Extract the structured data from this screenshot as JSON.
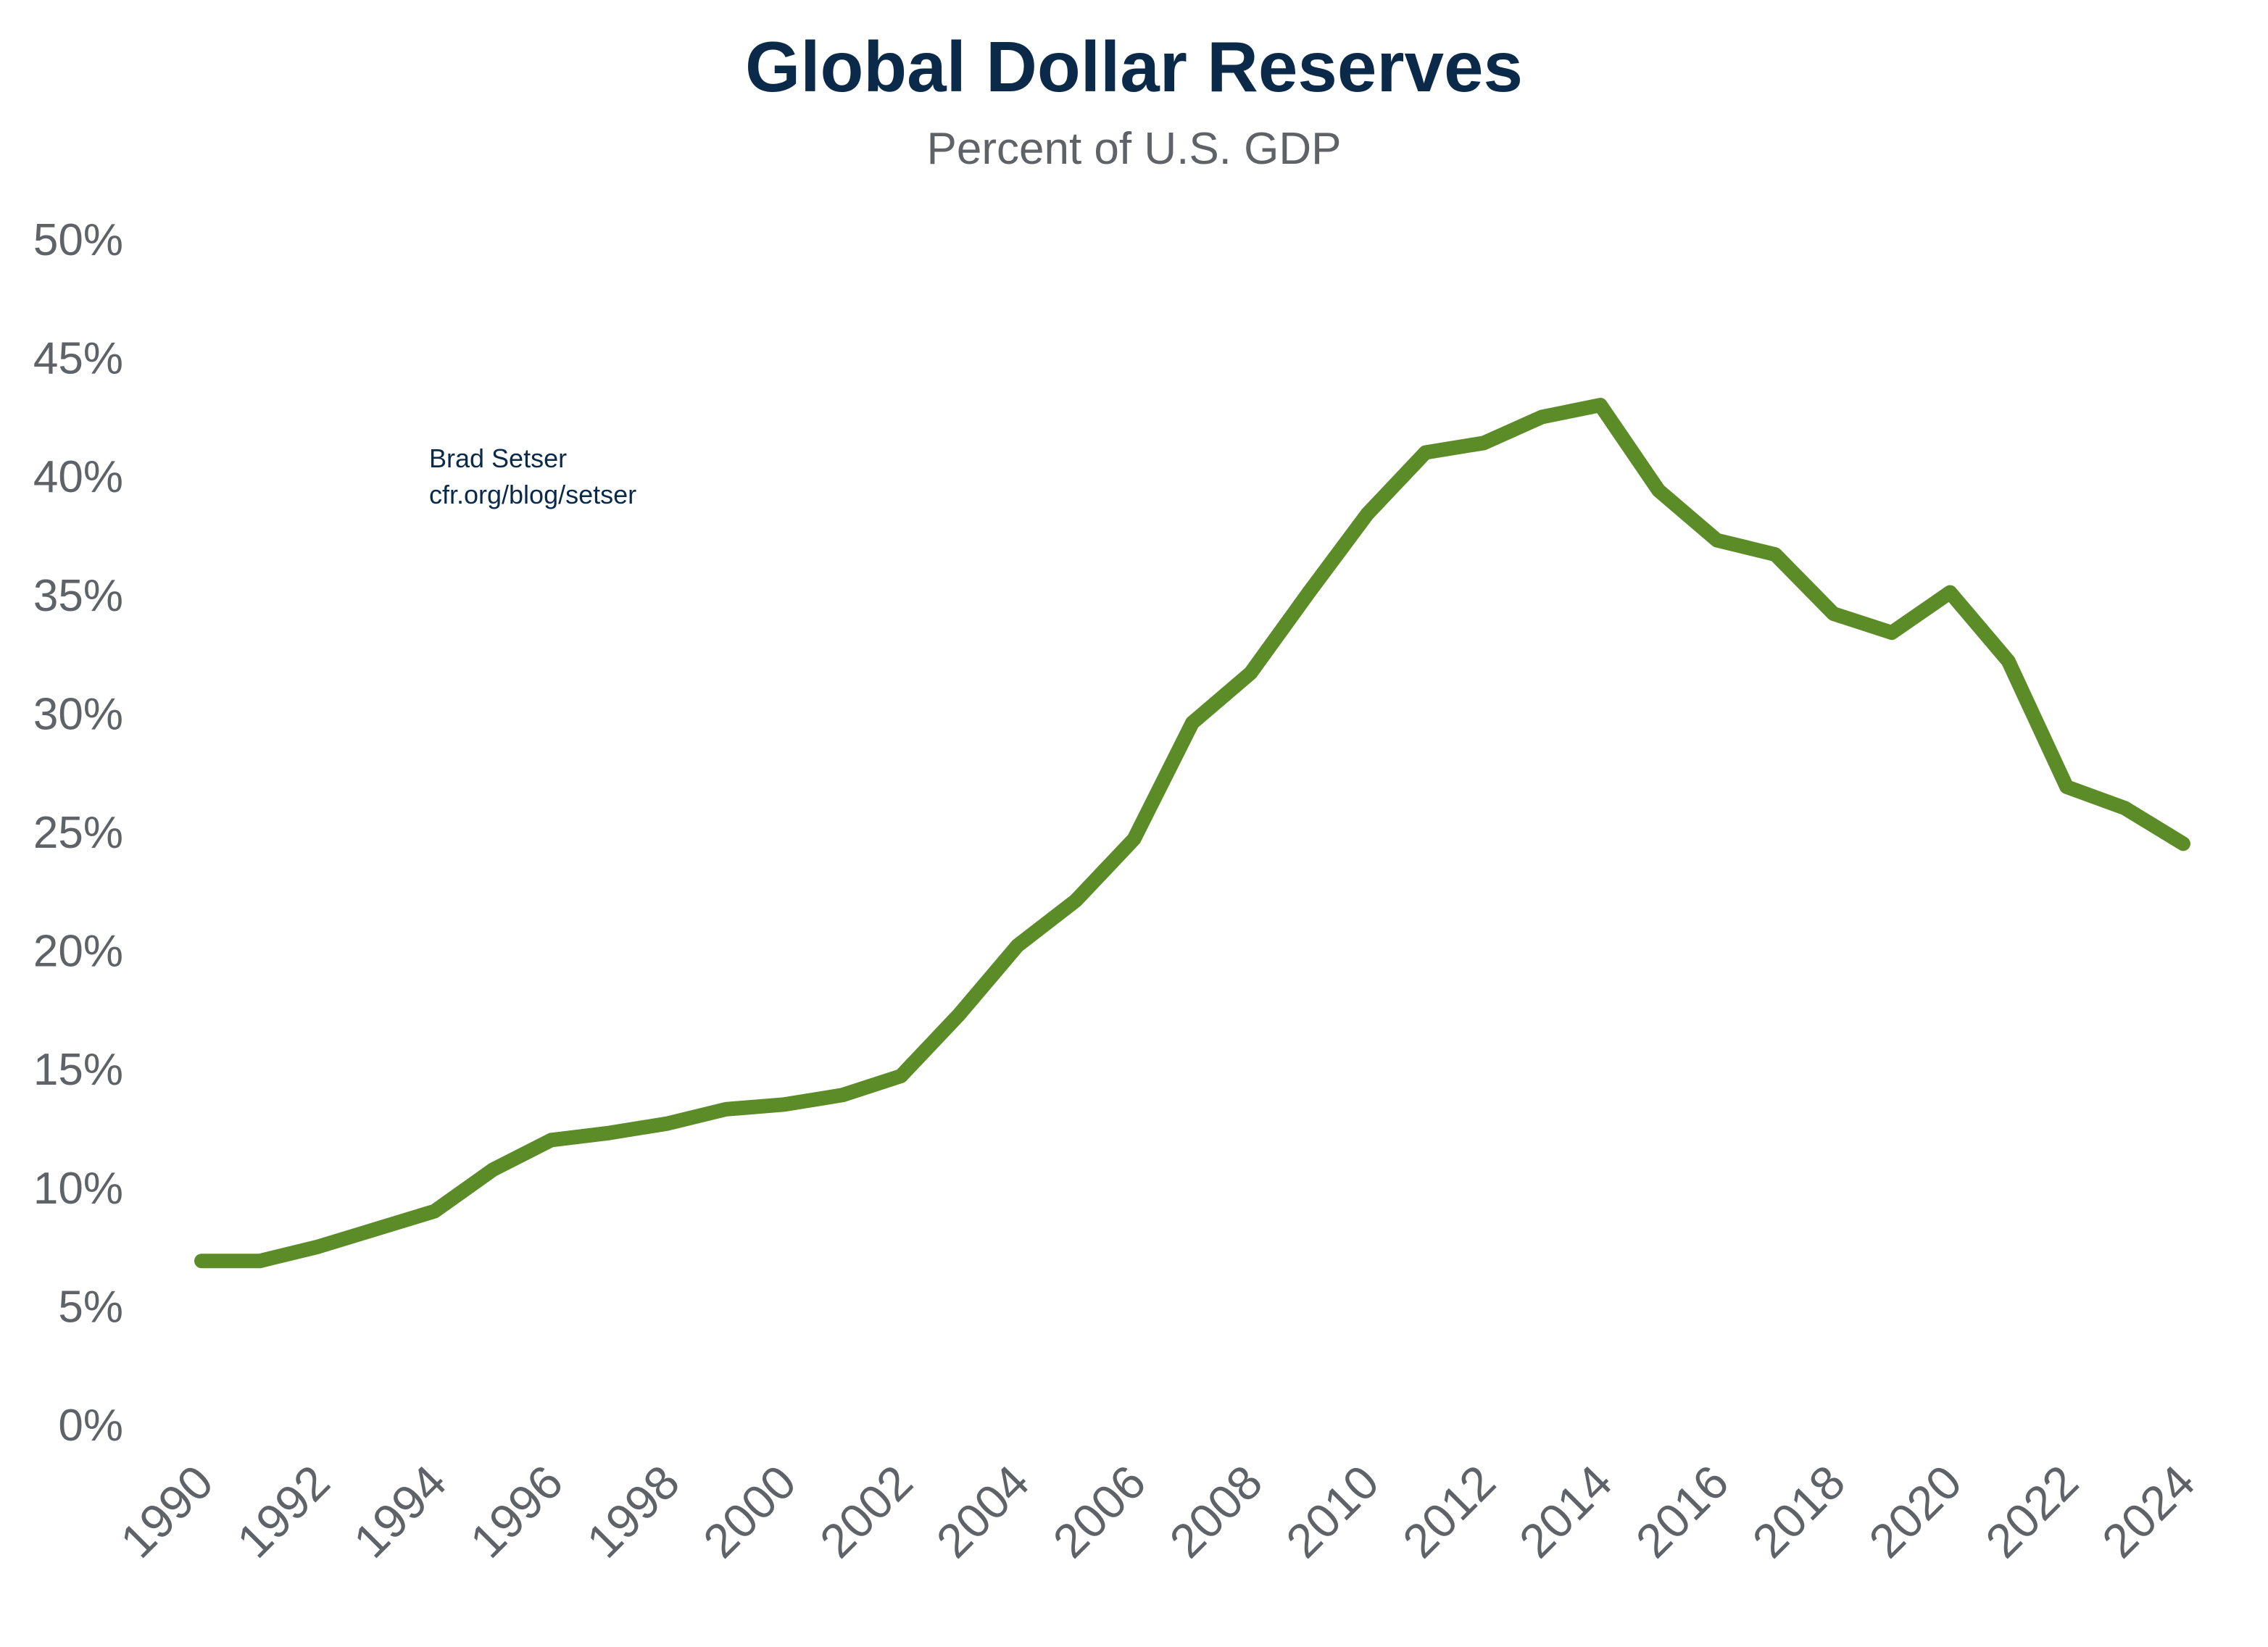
{
  "chart_data": {
    "type": "line",
    "title": "Global Dollar Reserves",
    "subtitle": "Percent of U.S. GDP",
    "xlabel": "",
    "ylabel": "",
    "annotation": [
      "Brad Setser",
      "cfr.org/blog/setser"
    ],
    "ylim": [
      0,
      50
    ],
    "yticks": [
      0,
      5,
      10,
      15,
      20,
      25,
      30,
      35,
      40,
      45,
      50
    ],
    "ytick_labels": [
      "0%",
      "5%",
      "10%",
      "15%",
      "20%",
      "25%",
      "30%",
      "35%",
      "40%",
      "45%",
      "50%"
    ],
    "xlim": [
      1990,
      2024
    ],
    "xtick_labels": [
      "1990",
      "1992",
      "1994",
      "1996",
      "1998",
      "2000",
      "2002",
      "2004",
      "2006",
      "2008",
      "2010",
      "2012",
      "2014",
      "2016",
      "2018",
      "2020",
      "2022",
      "2024"
    ],
    "grid": false,
    "legend": "none",
    "line_color": "#5b8c28",
    "x": [
      1990,
      1991,
      1992,
      1993,
      1994,
      1995,
      1996,
      1997,
      1998,
      1999,
      2000,
      2001,
      2002,
      2003,
      2004,
      2005,
      2006,
      2007,
      2008,
      2009,
      2010,
      2011,
      2012,
      2013,
      2014,
      2015,
      2016,
      2017,
      2018,
      2019,
      2020,
      2021,
      2022,
      2023,
      2024
    ],
    "values": [
      6.9,
      6.9,
      7.5,
      8.25,
      9.0,
      10.75,
      12.0,
      12.3,
      12.7,
      13.3,
      13.5,
      13.9,
      14.7,
      17.3,
      20.2,
      22.1,
      24.7,
      29.6,
      31.7,
      35.1,
      38.4,
      41.0,
      41.4,
      42.5,
      43.0,
      39.4,
      37.3,
      36.7,
      34.2,
      33.4,
      35.1,
      32.2,
      26.9,
      26.0,
      24.5
    ]
  }
}
